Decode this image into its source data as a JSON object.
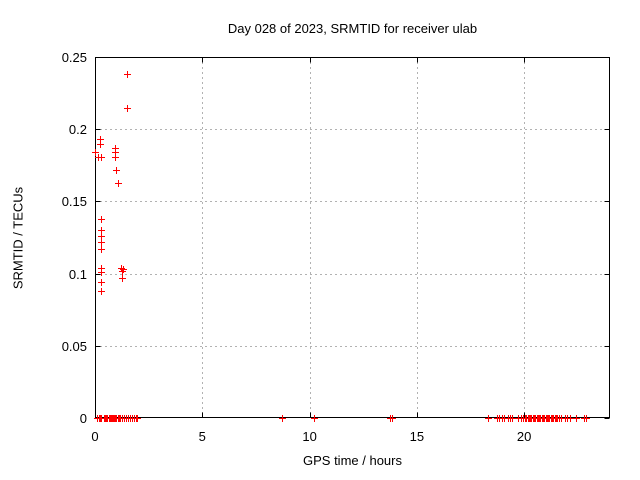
{
  "chart_data": {
    "type": "scatter",
    "title": "Day 028 of 2023, SRMTID for receiver ulab",
    "xlabel": "GPS time / hours",
    "ylabel": "SRMTID / TECUs",
    "xlim": [
      0,
      24
    ],
    "ylim": [
      0,
      0.25
    ],
    "xticks": [
      0,
      5,
      10,
      15,
      20
    ],
    "xtick_labels": [
      "0",
      "5",
      "10",
      "15",
      "20"
    ],
    "yticks": [
      0,
      0.05,
      0.1,
      0.15,
      0.2,
      0.25
    ],
    "ytick_labels": [
      "0",
      "0.05",
      "0.1",
      "0.15",
      "0.2",
      "0.25"
    ],
    "grid": true,
    "legend": "none",
    "marker": "plus",
    "marker_color": "#ff0000",
    "series": [
      {
        "name": "SRMTID",
        "points": [
          [
            1.5,
            0.238
          ],
          [
            1.5,
            0.215
          ],
          [
            0.22,
            0.193
          ],
          [
            0.22,
            0.19
          ],
          [
            0.02,
            0.184
          ],
          [
            0.14,
            0.181
          ],
          [
            0.28,
            0.181
          ],
          [
            0.92,
            0.187
          ],
          [
            0.92,
            0.184
          ],
          [
            0.92,
            0.181
          ],
          [
            0.97,
            0.172
          ],
          [
            1.05,
            0.163
          ],
          [
            0.27,
            0.138
          ],
          [
            0.27,
            0.13
          ],
          [
            0.27,
            0.126
          ],
          [
            0.27,
            0.122
          ],
          [
            0.27,
            0.117
          ],
          [
            0.27,
            0.104
          ],
          [
            0.27,
            0.101
          ],
          [
            0.27,
            0.094
          ],
          [
            0.27,
            0.088
          ],
          [
            1.22,
            0.104
          ],
          [
            1.3,
            0.103
          ],
          [
            1.26,
            0.102
          ],
          [
            1.27,
            0.097
          ],
          [
            0.1,
            0
          ],
          [
            0.17,
            0
          ],
          [
            0.23,
            0
          ],
          [
            0.3,
            0
          ],
          [
            0.43,
            0
          ],
          [
            0.48,
            0
          ],
          [
            0.53,
            0
          ],
          [
            0.58,
            0
          ],
          [
            0.63,
            0
          ],
          [
            0.68,
            0
          ],
          [
            0.73,
            0
          ],
          [
            0.78,
            0
          ],
          [
            0.83,
            0
          ],
          [
            0.88,
            0
          ],
          [
            0.93,
            0
          ],
          [
            0.98,
            0
          ],
          [
            1.08,
            0
          ],
          [
            1.13,
            0
          ],
          [
            1.18,
            0
          ],
          [
            1.28,
            0
          ],
          [
            1.33,
            0
          ],
          [
            1.43,
            0
          ],
          [
            1.53,
            0
          ],
          [
            1.63,
            0
          ],
          [
            1.73,
            0
          ],
          [
            1.83,
            0
          ],
          [
            1.93,
            0
          ],
          [
            1.98,
            0
          ],
          [
            8.7,
            0
          ],
          [
            10.22,
            0
          ],
          [
            13.75,
            0
          ],
          [
            13.85,
            0
          ],
          [
            18.3,
            0
          ],
          [
            18.75,
            0
          ],
          [
            18.85,
            0
          ],
          [
            18.95,
            0
          ],
          [
            19.05,
            0
          ],
          [
            19.25,
            0
          ],
          [
            19.35,
            0
          ],
          [
            19.45,
            0
          ],
          [
            19.7,
            0
          ],
          [
            19.85,
            0
          ],
          [
            19.95,
            0
          ],
          [
            20.04,
            0
          ],
          [
            20.1,
            0
          ],
          [
            20.16,
            0
          ],
          [
            20.22,
            0
          ],
          [
            20.28,
            0
          ],
          [
            20.34,
            0
          ],
          [
            20.4,
            0
          ],
          [
            20.46,
            0
          ],
          [
            20.52,
            0
          ],
          [
            20.58,
            0
          ],
          [
            20.64,
            0
          ],
          [
            20.7,
            0
          ],
          [
            20.76,
            0
          ],
          [
            20.82,
            0
          ],
          [
            20.88,
            0
          ],
          [
            20.94,
            0
          ],
          [
            21.0,
            0
          ],
          [
            21.06,
            0
          ],
          [
            21.12,
            0
          ],
          [
            21.18,
            0
          ],
          [
            21.24,
            0
          ],
          [
            21.3,
            0
          ],
          [
            21.36,
            0
          ],
          [
            21.42,
            0
          ],
          [
            21.48,
            0
          ],
          [
            21.55,
            0
          ],
          [
            21.62,
            0
          ],
          [
            21.7,
            0
          ],
          [
            21.9,
            0
          ],
          [
            22.0,
            0
          ],
          [
            22.15,
            0
          ],
          [
            22.4,
            0
          ],
          [
            22.8,
            0
          ],
          [
            22.9,
            0
          ]
        ]
      }
    ],
    "colors": {
      "background": "#ffffff",
      "border": "#000000",
      "grid": "#b2b2b2",
      "marker": "#ff0000",
      "text": "#000000"
    }
  }
}
